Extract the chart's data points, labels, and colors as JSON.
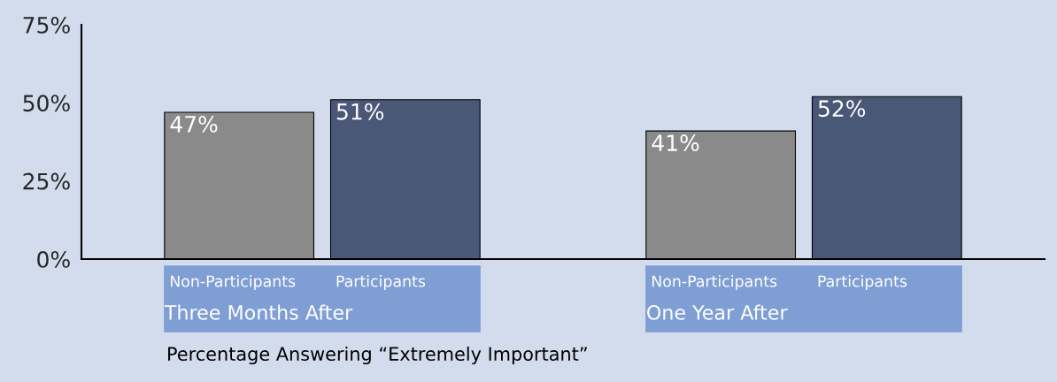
{
  "chart_data": {
    "type": "bar",
    "xlabel": "Percentage Answering “Extremely Important”",
    "categories": [
      "Three Months After",
      "One Year After"
    ],
    "series": [
      {
        "name": "Non-Participants",
        "color": "#8a8a8a",
        "values": [
          47,
          41
        ],
        "value_labels": [
          "47%",
          "41%"
        ]
      },
      {
        "name": "Participants",
        "color": "#4a5878",
        "values": [
          51,
          52
        ],
        "value_labels": [
          "51%",
          "52%"
        ]
      }
    ],
    "ylim": [
      0,
      75
    ],
    "yticks": [
      {
        "value": 0,
        "label": "0%"
      },
      {
        "value": 25,
        "label": "25%"
      },
      {
        "value": 50,
        "label": "50%"
      },
      {
        "value": 75,
        "label": "75%"
      }
    ],
    "grid": false,
    "legend": false
  }
}
